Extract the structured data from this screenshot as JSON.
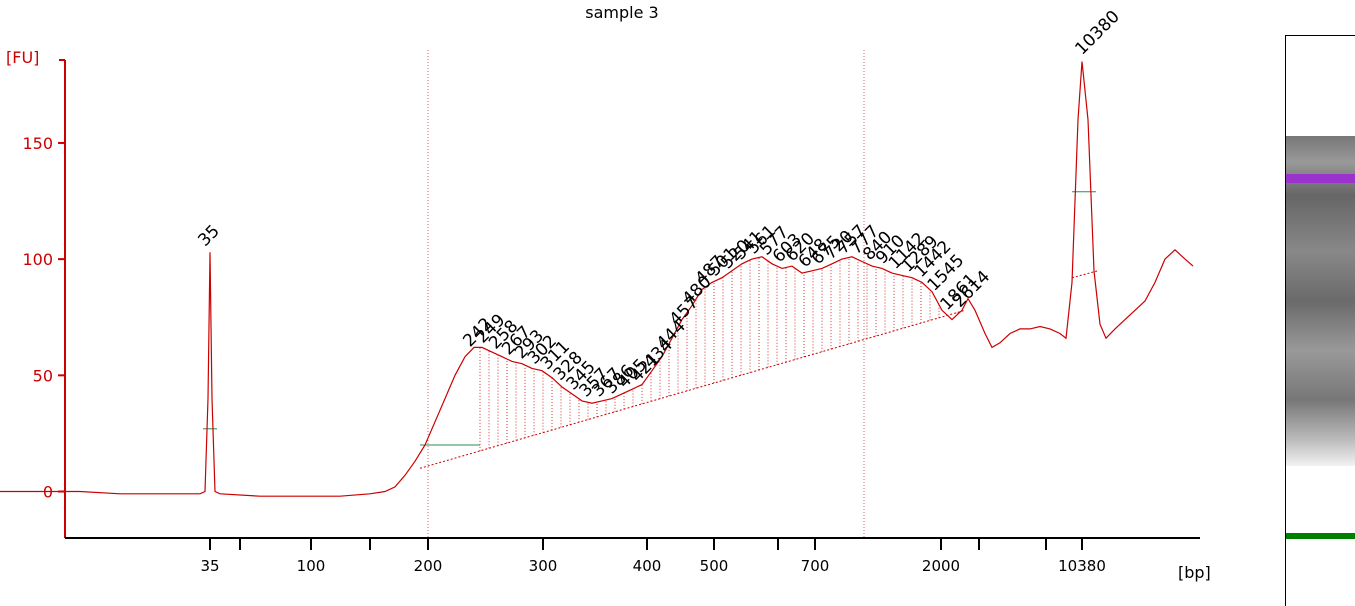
{
  "chart_data": {
    "type": "line",
    "title": "sample 3",
    "ylabel": "[FU]",
    "xlabel": "[bp]",
    "ylim": [
      -20,
      190
    ],
    "y_ticks": [
      0,
      50,
      100,
      150
    ],
    "x_tick_labels": [
      "35",
      "100",
      "200",
      "300",
      "400",
      "500",
      "700",
      "2000",
      "10380"
    ],
    "lower_marker": {
      "label": "35",
      "color": "#008000",
      "height": 103
    },
    "upper_marker": {
      "label": "10380",
      "color": "#9933cc",
      "height": 185
    },
    "region_bounds_bp": [
      "200",
      "2000"
    ],
    "peak_labels": [
      "242",
      "249",
      "258",
      "267",
      "293",
      "302",
      "311",
      "328",
      "345",
      "357",
      "367",
      "386",
      "405",
      "421",
      "434",
      "444",
      "457",
      "480",
      "487",
      "501",
      "520",
      "541",
      "561",
      "577",
      "603",
      "620",
      "648",
      "675",
      "720",
      "757",
      "777",
      "840",
      "910",
      "1142",
      "1289",
      "1442",
      "1545",
      "1861",
      "2614"
    ],
    "curve": [
      [
        0,
        0
      ],
      [
        80,
        0
      ],
      [
        120,
        -1
      ],
      [
        160,
        -1
      ],
      [
        190,
        -1
      ],
      [
        200,
        -1
      ],
      [
        205,
        0
      ],
      [
        208,
        40
      ],
      [
        210,
        103
      ],
      [
        212,
        40
      ],
      [
        215,
        0
      ],
      [
        220,
        -1
      ],
      [
        260,
        -2
      ],
      [
        300,
        -2
      ],
      [
        340,
        -2
      ],
      [
        370,
        -1
      ],
      [
        385,
        0
      ],
      [
        395,
        2
      ],
      [
        405,
        7
      ],
      [
        415,
        13
      ],
      [
        425,
        20
      ],
      [
        435,
        30
      ],
      [
        445,
        40
      ],
      [
        455,
        50
      ],
      [
        465,
        58
      ],
      [
        474,
        62
      ],
      [
        482,
        62
      ],
      [
        492,
        60
      ],
      [
        502,
        58
      ],
      [
        512,
        56
      ],
      [
        522,
        55
      ],
      [
        532,
        53
      ],
      [
        542,
        52
      ],
      [
        552,
        49
      ],
      [
        562,
        45
      ],
      [
        572,
        42
      ],
      [
        582,
        39
      ],
      [
        592,
        38
      ],
      [
        602,
        39
      ],
      [
        612,
        40
      ],
      [
        622,
        42
      ],
      [
        632,
        44
      ],
      [
        642,
        46
      ],
      [
        652,
        52
      ],
      [
        662,
        58
      ],
      [
        672,
        66
      ],
      [
        682,
        74
      ],
      [
        692,
        80
      ],
      [
        702,
        87
      ],
      [
        712,
        90
      ],
      [
        722,
        92
      ],
      [
        732,
        95
      ],
      [
        742,
        98
      ],
      [
        752,
        100
      ],
      [
        762,
        101
      ],
      [
        772,
        98
      ],
      [
        782,
        96
      ],
      [
        792,
        97
      ],
      [
        802,
        94
      ],
      [
        812,
        95
      ],
      [
        822,
        96
      ],
      [
        832,
        98
      ],
      [
        842,
        100
      ],
      [
        852,
        101
      ],
      [
        862,
        99
      ],
      [
        872,
        97
      ],
      [
        882,
        96
      ],
      [
        892,
        94
      ],
      [
        902,
        93
      ],
      [
        912,
        92
      ],
      [
        922,
        90
      ],
      [
        932,
        86
      ],
      [
        942,
        78
      ],
      [
        952,
        74
      ],
      [
        962,
        78
      ],
      [
        968,
        83
      ],
      [
        975,
        78
      ],
      [
        985,
        68
      ],
      [
        992,
        62
      ],
      [
        1000,
        64
      ],
      [
        1010,
        68
      ],
      [
        1020,
        70
      ],
      [
        1030,
        70
      ],
      [
        1040,
        71
      ],
      [
        1050,
        70
      ],
      [
        1060,
        68
      ],
      [
        1066,
        66
      ],
      [
        1072,
        90
      ],
      [
        1078,
        160
      ],
      [
        1082,
        185
      ],
      [
        1088,
        160
      ],
      [
        1094,
        95
      ],
      [
        1100,
        72
      ],
      [
        1106,
        66
      ],
      [
        1115,
        70
      ],
      [
        1125,
        74
      ],
      [
        1135,
        78
      ],
      [
        1145,
        82
      ],
      [
        1155,
        90
      ],
      [
        1165,
        100
      ],
      [
        1175,
        104
      ],
      [
        1185,
        100
      ],
      [
        1193,
        97
      ]
    ]
  }
}
